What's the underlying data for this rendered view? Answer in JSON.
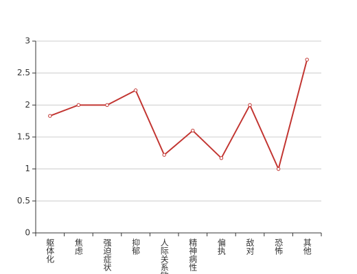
{
  "chart_data": {
    "type": "line",
    "categories": [
      "躯体化",
      "焦虑",
      "强迫症状",
      "抑郁",
      "人际关系敏感",
      "精神病性",
      "偏执",
      "敌对",
      "恐怖",
      "其他"
    ],
    "values": [
      1.83,
      2.0,
      2.0,
      2.23,
      1.22,
      1.6,
      1.17,
      2.0,
      1.0,
      2.71
    ],
    "color": "#c23531",
    "ylim": [
      0,
      3
    ],
    "yticks": [
      0,
      0.5,
      1,
      1.5,
      2,
      2.5,
      3
    ],
    "grid": true
  }
}
